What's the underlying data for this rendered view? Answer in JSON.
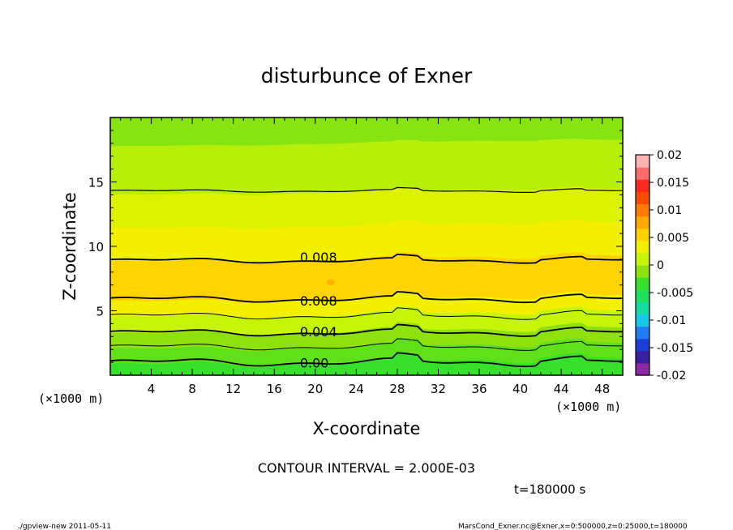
{
  "chart_data": {
    "type": "contour",
    "title": "disturbunce of Exner",
    "xlabel": "X-coordinate",
    "ylabel": "Z-coordinate",
    "x_unit_left": "(×1000 m)",
    "x_unit_right": "(×1000 m)",
    "xlim": [
      0,
      50
    ],
    "ylim": [
      0,
      20
    ],
    "x_ticks": [
      "4",
      "8",
      "12",
      "16",
      "20",
      "24",
      "28",
      "32",
      "36",
      "40",
      "44",
      "48"
    ],
    "y_ticks": [
      "5",
      "10",
      "15"
    ],
    "colorbar": {
      "ticks": [
        "0.02",
        "0.015",
        "0.01",
        "0.005",
        "0",
        "-0.005",
        "-0.01",
        "-0.015",
        "-0.02"
      ],
      "range": [
        -0.02,
        0.02
      ],
      "colors": [
        "#8b2aa3",
        "#3a1fa0",
        "#1a3fd6",
        "#1f7df5",
        "#19c8e6",
        "#14dca0",
        "#1ee05c",
        "#37e02a",
        "#8ee00e",
        "#c6f50a",
        "#f2f000",
        "#ffd200",
        "#ffa800",
        "#ff7a00",
        "#ff4b00",
        "#ff2a1e",
        "#ff6a6a",
        "#ffb4b4"
      ]
    },
    "contour_labels": [
      "0.008",
      "0.008",
      "0.004",
      "0.00"
    ],
    "contour_interval": "CONTOUR INTERVAL = 2.000E-03",
    "time_label": "t=180000 s",
    "footer_left": "./gpview-new 2011-05-11",
    "footer_right": "MarsCond_Exner.nc@Exner,x=0:500000,z=0:25000,t=180000"
  }
}
